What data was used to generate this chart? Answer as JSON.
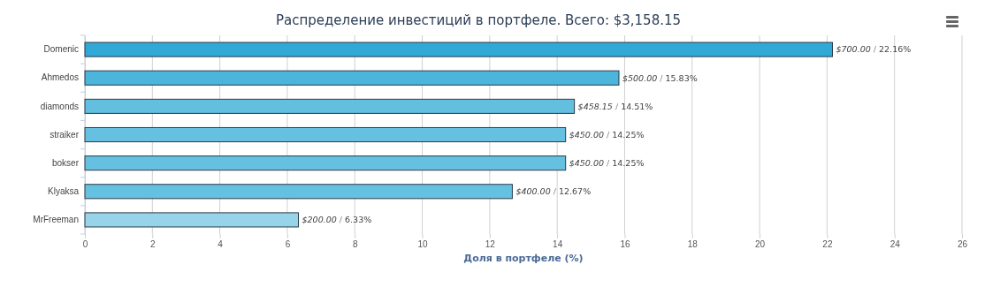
{
  "chart_data": {
    "type": "bar",
    "orientation": "horizontal",
    "title": "Распределение инвестиций в портфеле. Всего: $3,158.15",
    "xlabel": "Доля в портфеле (%)",
    "categories": [
      "Domenic",
      "Ahmedos",
      "diamonds",
      "straiker",
      "bokser",
      "Klyaksa",
      "MrFreeman"
    ],
    "values": [
      22.16,
      15.83,
      14.51,
      14.25,
      14.25,
      12.67,
      6.33
    ],
    "colors": [
      "#31a9d6",
      "#4bb5dc",
      "#62bfe0",
      "#66c1e1",
      "#66c1e1",
      "#66c1e1",
      "#97d4ea"
    ],
    "value_labels": [
      "$700.00 / 22.16%",
      "$500.00 / 15.83%",
      "$458.15 / 14.51%",
      "$450.00 / 14.25%",
      "$450.00 / 14.25%",
      "$400.00 / 12.67%",
      "$200.00 / 6.33%"
    ],
    "xlim": [
      0,
      26
    ],
    "xticks": [
      0,
      2,
      4,
      6,
      8,
      10,
      12,
      14,
      16,
      18,
      20,
      22,
      24,
      26
    ],
    "grid": "x"
  }
}
